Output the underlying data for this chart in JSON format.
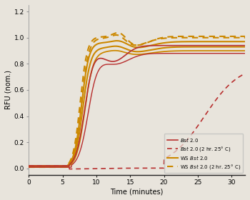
{
  "title": "",
  "xlabel": "Time (minutes)",
  "ylabel": "RFU (nom.)",
  "xlim": [
    0,
    32
  ],
  "ylim": [
    -0.05,
    1.25
  ],
  "yticks": [
    0.0,
    0.2,
    0.4,
    0.6,
    0.8,
    1.0,
    1.2
  ],
  "xticks": [
    0,
    5,
    10,
    15,
    20,
    25,
    30
  ],
  "color_red": "#b83030",
  "color_gold": "#cc8800",
  "bg_color": "#e8e4dc",
  "spine_bottom_color": "#222222",
  "spine_left_color": "#999999"
}
